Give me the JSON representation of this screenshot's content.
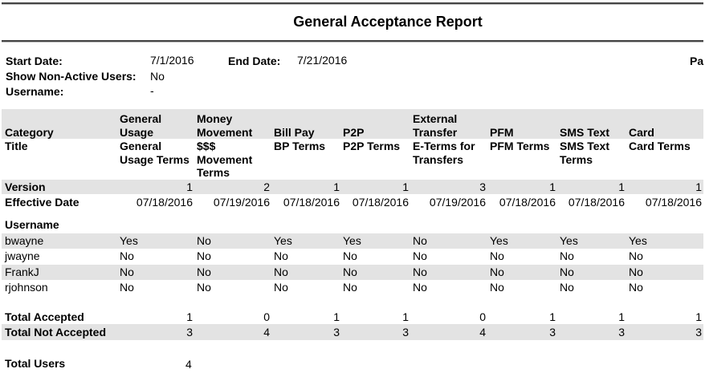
{
  "report": {
    "title": "General Acceptance Report",
    "params": {
      "start_date_label": "Start Date:",
      "start_date": "7/1/2016",
      "end_date_label": "End Date:",
      "end_date": "7/21/2016",
      "page_label_partial": "Pa",
      "show_non_active_label": "Show Non-Active Users:",
      "show_non_active": "No",
      "username_label": "Username:",
      "username": "-"
    },
    "row_labels": {
      "category": "Category",
      "title": "Title",
      "version": "Version",
      "effective_date": "Effective Date",
      "username": "Username",
      "total_accepted": "Total Accepted",
      "total_not_accepted": "Total Not Accepted",
      "total_users": "Total Users"
    },
    "columns": [
      {
        "category": "General Usage",
        "title": "General Usage Terms",
        "version": "1",
        "effective_date": "07/18/2016",
        "total_accepted": "1",
        "total_not_accepted": "3"
      },
      {
        "category": "Money Movement",
        "title": "$$$ Movement Terms",
        "version": "2",
        "effective_date": "07/19/2016",
        "total_accepted": "0",
        "total_not_accepted": "4"
      },
      {
        "category": "Bill Pay",
        "title": "BP Terms",
        "version": "1",
        "effective_date": "07/18/2016",
        "total_accepted": "1",
        "total_not_accepted": "3"
      },
      {
        "category": "P2P",
        "title": "P2P Terms",
        "version": "1",
        "effective_date": "07/18/2016",
        "total_accepted": "1",
        "total_not_accepted": "3"
      },
      {
        "category": "External Transfer",
        "title": "E-Terms for Transfers",
        "version": "3",
        "effective_date": "07/19/2016",
        "total_accepted": "0",
        "total_not_accepted": "4"
      },
      {
        "category": "PFM",
        "title": "PFM Terms",
        "version": "1",
        "effective_date": "07/18/2016",
        "total_accepted": "1",
        "total_not_accepted": "3"
      },
      {
        "category": "SMS Text",
        "title": "SMS Text Terms",
        "version": "1",
        "effective_date": "07/18/2016",
        "total_accepted": "1",
        "total_not_accepted": "3"
      },
      {
        "category": "Card",
        "title": "Card Terms",
        "version": "1",
        "effective_date": "07/18/2016",
        "total_accepted": "1",
        "total_not_accepted": "3"
      }
    ],
    "users": [
      {
        "name": "bwayne",
        "values": [
          "Yes",
          "No",
          "Yes",
          "Yes",
          "No",
          "Yes",
          "Yes",
          "Yes"
        ]
      },
      {
        "name": "jwayne",
        "values": [
          "No",
          "No",
          "No",
          "No",
          "No",
          "No",
          "No",
          "No"
        ]
      },
      {
        "name": "FrankJ",
        "values": [
          "No",
          "No",
          "No",
          "No",
          "No",
          "No",
          "No",
          "No"
        ]
      },
      {
        "name": "rjohnson",
        "values": [
          "No",
          "No",
          "No",
          "No",
          "No",
          "No",
          "No",
          "No"
        ]
      }
    ],
    "total_users": "4"
  }
}
